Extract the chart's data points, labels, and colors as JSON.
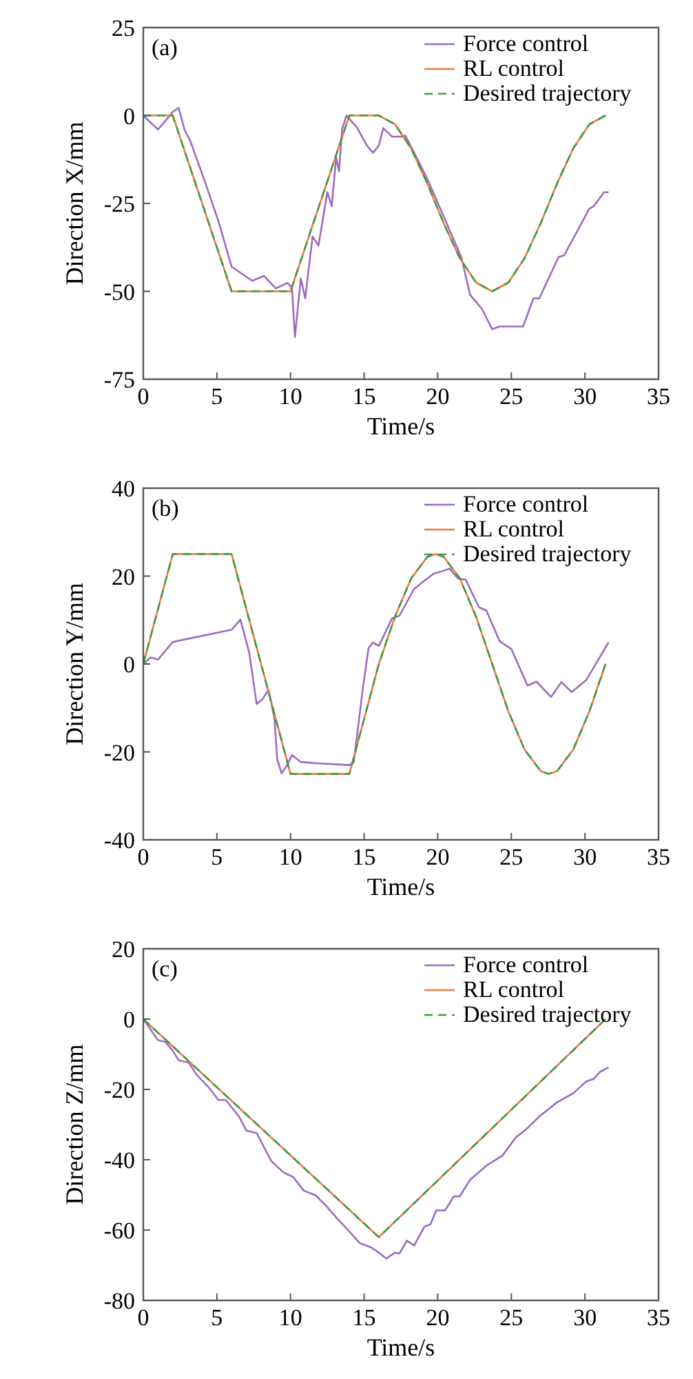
{
  "chart_data": [
    {
      "type": "line",
      "xlabel": "Time/s",
      "ylabel": "Direction X/mm",
      "annotations": [
        "(a)"
      ],
      "xlim": [
        0,
        35
      ],
      "xticks": [
        0,
        5,
        10,
        15,
        20,
        25,
        30,
        35
      ],
      "ylim": [
        -75,
        25
      ],
      "yticks": [
        -75,
        -50,
        -25,
        0,
        25
      ],
      "legend": "top right",
      "grid": false,
      "series": [
        {
          "name": "Force control",
          "color": "#9b6bc0",
          "x": [
            0,
            0.5,
            1,
            1.6,
            2.0,
            2.4,
            2.8,
            3.2,
            4.2,
            5.1,
            6.0,
            6.7,
            7.4,
            8.2,
            9.0,
            9.8,
            10.1,
            10.3,
            10.7,
            11.0,
            11.5,
            11.9,
            12.5,
            12.8,
            13.1,
            13.3,
            13.5,
            13.8,
            14.5,
            15.2,
            15.6,
            16.0,
            16.3,
            16.9,
            17.6,
            17.8,
            18.8,
            19.4,
            21.6,
            22.2,
            23.0,
            23.7,
            24.2,
            25.8,
            26.5,
            26.9,
            28.2,
            28.6,
            30.3,
            30.6,
            31.3,
            31.6
          ],
          "values": [
            0,
            -2,
            -4,
            -1,
            1,
            2.2,
            -4,
            -7.3,
            -19,
            -30,
            -43,
            -45,
            -47,
            -45.6,
            -49.2,
            -47.6,
            -49,
            -63,
            -46.3,
            -52,
            -34.4,
            -37,
            -21.8,
            -25.8,
            -11.9,
            -15.9,
            -4,
            0,
            -3.3,
            -8.6,
            -10.6,
            -8.6,
            -3.6,
            -6,
            -6,
            -5.7,
            -13.9,
            -19,
            -40.3,
            -51,
            -55,
            -60.8,
            -60,
            -60,
            -52,
            -52,
            -40.3,
            -39.7,
            -26.5,
            -25.8,
            -21.8,
            -21.8
          ]
        },
        {
          "name": "RL control",
          "color": "#f07a3c",
          "x": [
            0,
            2,
            6,
            10,
            14,
            16,
            17.1,
            18.2,
            19.3,
            20.4,
            21.5,
            22.6,
            23.7,
            24.8,
            25.9,
            27.0,
            28.1,
            29.2,
            30.3,
            31.4
          ],
          "values": [
            0,
            0,
            -50,
            -50,
            0,
            0,
            -2.5,
            -9.4,
            -19.4,
            -30.6,
            -40.6,
            -47.5,
            -50,
            -47.5,
            -40.6,
            -30.6,
            -19.4,
            -9.4,
            -2.5,
            0
          ]
        },
        {
          "name": "Desired trajectory",
          "color": "#3d9a46",
          "line_style": "dashed",
          "x": [
            0,
            2,
            6,
            10,
            14,
            16,
            17.1,
            18.2,
            19.3,
            20.4,
            21.5,
            22.6,
            23.7,
            24.8,
            25.9,
            27.0,
            28.1,
            29.2,
            30.3,
            31.4
          ],
          "values": [
            0,
            0,
            -50,
            -50,
            0,
            0,
            -2.5,
            -9.4,
            -19.4,
            -30.6,
            -40.6,
            -47.5,
            -50,
            -47.5,
            -40.6,
            -30.6,
            -19.4,
            -9.4,
            -2.5,
            0
          ]
        }
      ]
    },
    {
      "type": "line",
      "xlabel": "Time/s",
      "ylabel": "Direction Y/mm",
      "annotations": [
        "(b)"
      ],
      "xlim": [
        0,
        35
      ],
      "xticks": [
        0,
        5,
        10,
        15,
        20,
        25,
        30,
        35
      ],
      "ylim": [
        -40,
        40
      ],
      "yticks": [
        -40,
        -20,
        0,
        20,
        40
      ],
      "legend": "top right",
      "grid": false,
      "series": [
        {
          "name": "Force control",
          "color": "#9b6bc0",
          "x": [
            0,
            0.5,
            1,
            1.5,
            2,
            6.0,
            6.6,
            7.2,
            7.7,
            8.1,
            8.5,
            8.9,
            9.1,
            9.4,
            9.8,
            10.1,
            10.7,
            11.8,
            14.0,
            14.3,
            14.9,
            15.3,
            15.6,
            16.0,
            16.9,
            17.4,
            18.4,
            19.7,
            20.2,
            20.8,
            21.4,
            21.9,
            22.8,
            23.3,
            24.2,
            25.0,
            26.1,
            26.7,
            27.7,
            28.4,
            29.1,
            30.1,
            31.6
          ],
          "values": [
            0,
            1.5,
            1,
            3,
            5,
            7.8,
            10.1,
            2.5,
            -9.1,
            -8,
            -5.9,
            -12.2,
            -21.7,
            -24.9,
            -22.8,
            -20.7,
            -22.3,
            -22.6,
            -23,
            -22.3,
            -5.9,
            3.6,
            4.9,
            4.1,
            10.4,
            11,
            17.1,
            20.5,
            21,
            21.7,
            19.4,
            19.2,
            12.9,
            12.2,
            5.2,
            3.4,
            -4.9,
            -4,
            -7.5,
            -4.1,
            -6.4,
            -3.6,
            4.9
          ]
        },
        {
          "name": "RL control",
          "color": "#f07a3c",
          "x": [
            0,
            2,
            6,
            10,
            14,
            16,
            17.1,
            18.2,
            19.3,
            19.85,
            20.4,
            21.5,
            22.6,
            23.7,
            24.8,
            25.9,
            27.0,
            27.55,
            28.1,
            29.2,
            30.3,
            31.4
          ],
          "values": [
            0,
            25,
            25,
            -25,
            -25,
            0,
            10.8,
            19.5,
            24.4,
            25,
            24.4,
            19.5,
            10.8,
            0,
            -10.8,
            -19.5,
            -24.4,
            -25,
            -24.4,
            -19.5,
            -10.8,
            0
          ]
        },
        {
          "name": "Desired trajectory",
          "color": "#3d9a46",
          "line_style": "dashed",
          "x": [
            0,
            2,
            6,
            10,
            14,
            16,
            17.1,
            18.2,
            19.3,
            19.85,
            20.4,
            21.5,
            22.6,
            23.7,
            24.8,
            25.9,
            27.0,
            27.55,
            28.1,
            29.2,
            30.3,
            31.4
          ],
          "values": [
            0,
            25,
            25,
            -25,
            -25,
            0,
            10.8,
            19.5,
            24.4,
            25,
            24.4,
            19.5,
            10.8,
            0,
            -10.8,
            -19.5,
            -24.4,
            -25,
            -24.4,
            -19.5,
            -10.8,
            0
          ]
        }
      ]
    },
    {
      "type": "line",
      "xlabel": "Time/s",
      "ylabel": "Direction Z/mm",
      "annotations": [
        "(c)"
      ],
      "xlim": [
        0,
        35
      ],
      "xticks": [
        0,
        5,
        10,
        15,
        20,
        25,
        30,
        35
      ],
      "ylim": [
        -80,
        20
      ],
      "yticks": [
        -80,
        -60,
        -40,
        -20,
        0,
        20
      ],
      "legend": "top right",
      "grid": false,
      "series": [
        {
          "name": "Force control",
          "color": "#9b6bc0",
          "x": [
            0,
            0.5,
            1,
            1.5,
            2.0,
            2.4,
            3.1,
            3.6,
            4.5,
            5.1,
            5.6,
            6.5,
            7.0,
            7.7,
            8.7,
            9.5,
            10.2,
            10.9,
            11.7,
            12.4,
            13.1,
            14.0,
            14.7,
            15.5,
            16.0,
            16.5,
            17.1,
            17.4,
            17.9,
            18.4,
            19.1,
            19.5,
            19.9,
            20.5,
            21.1,
            21.5,
            22.2,
            23.3,
            24.4,
            25.3,
            26.1,
            26.9,
            28.1,
            29.2,
            30.1,
            30.6,
            31.0,
            31.6
          ],
          "values": [
            0,
            -3,
            -6,
            -6.5,
            -9,
            -11.7,
            -12.4,
            -15.7,
            -19.7,
            -23,
            -23,
            -27.7,
            -31.7,
            -32.4,
            -40.4,
            -43.5,
            -45,
            -48.8,
            -50.1,
            -53,
            -56.4,
            -60.4,
            -63.7,
            -65,
            -66.4,
            -68.1,
            -66.4,
            -66.7,
            -63,
            -64.4,
            -59,
            -58.4,
            -54.4,
            -54.4,
            -50.4,
            -50.4,
            -45.7,
            -41.7,
            -38.8,
            -33.7,
            -31,
            -27.7,
            -23.7,
            -21.1,
            -17.7,
            -17,
            -15.1,
            -13.7
          ]
        },
        {
          "name": "RL control",
          "color": "#f07a3c",
          "x": [
            0,
            16,
            31.4
          ],
          "values": [
            0,
            -62,
            0
          ]
        },
        {
          "name": "Desired trajectory",
          "color": "#3d9a46",
          "line_style": "dashed",
          "x": [
            0,
            16,
            31.4
          ],
          "values": [
            0,
            -62,
            0
          ]
        }
      ]
    }
  ]
}
